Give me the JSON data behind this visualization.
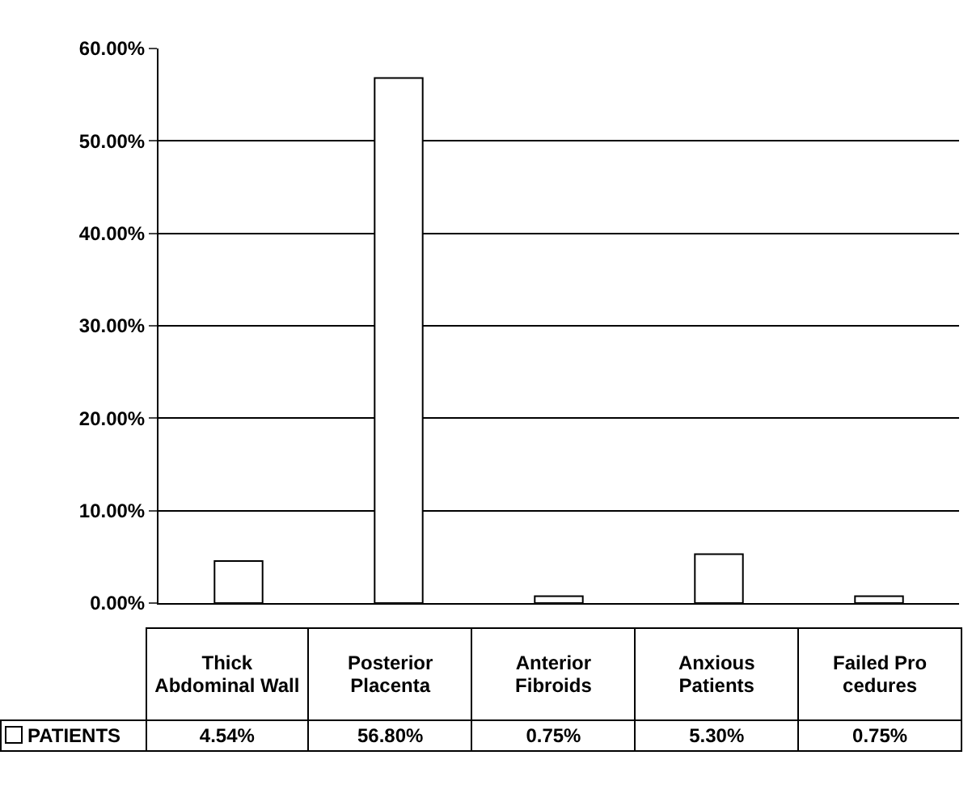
{
  "chart_data": {
    "type": "bar",
    "categories": [
      "Thick Abdominal Wall",
      "Posterior Placenta",
      "Anterior Fibroids",
      "Anxious Patients",
      "Failed Pro cedures"
    ],
    "series": [
      {
        "name": "PATIENTS",
        "color": "#ffffff",
        "values": [
          4.54,
          56.8,
          0.75,
          5.3,
          0.75
        ],
        "value_labels": [
          "4.54%",
          "56.80%",
          "0.75%",
          "5.30%",
          "0.75%"
        ]
      }
    ],
    "ylim": [
      0,
      60
    ],
    "yticks": [
      {
        "value": 0,
        "label": "0.00%"
      },
      {
        "value": 10,
        "label": "10.00%"
      },
      {
        "value": 20,
        "label": "20.00%"
      },
      {
        "value": 30,
        "label": "30.00%"
      },
      {
        "value": 40,
        "label": "40.00%"
      },
      {
        "value": 50,
        "label": "50.00%"
      },
      {
        "value": 60,
        "label": "60.00%"
      }
    ],
    "grid": "y",
    "legend": "bottom left"
  }
}
